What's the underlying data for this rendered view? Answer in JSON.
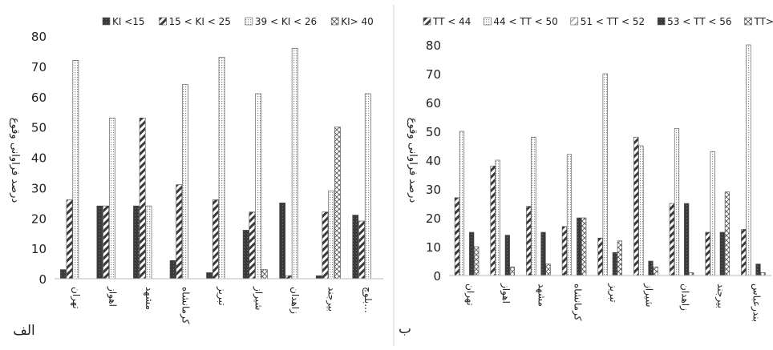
{
  "chart_data": [
    {
      "type": "bar",
      "panel_letter": "الف",
      "ylabel": "درصد فراوانی وقوع",
      "ylim": [
        0,
        80
      ],
      "yticks": [
        0,
        10,
        20,
        30,
        40,
        50,
        60,
        70,
        80
      ],
      "legend_position": "top",
      "categories": [
        "تهران",
        "اهواز",
        "مشهد",
        "کرمانشاه",
        "تبریز",
        "شیراز",
        "زاهدان",
        "بیرجند",
        "بلوچ..."
      ],
      "series": [
        {
          "name": "KI <15",
          "pattern": "solid",
          "values": [
            3,
            24,
            24,
            6,
            2,
            16,
            25,
            1,
            21
          ]
        },
        {
          "name": "15 < KI < 25",
          "pattern": "diag",
          "values": [
            26,
            24,
            53,
            31,
            26,
            22,
            1,
            22,
            19
          ]
        },
        {
          "name": "39 < KI < 26",
          "pattern": "dots",
          "values": [
            72,
            53,
            24,
            64,
            73,
            61,
            76,
            29,
            61
          ]
        },
        {
          "name": "KI> 40",
          "pattern": "cross",
          "values": [
            0,
            0,
            0,
            0,
            0,
            3,
            0,
            50,
            0
          ]
        }
      ]
    },
    {
      "type": "bar",
      "panel_letter": "ب",
      "ylabel": "درصد فراوانی وقوع",
      "ylim": [
        0,
        80
      ],
      "yticks": [
        0,
        10,
        20,
        30,
        40,
        50,
        60,
        70,
        80
      ],
      "legend_position": "top",
      "categories": [
        "تهران",
        "اهواز",
        "مشهد",
        "کرمانشاه",
        "تبریز",
        "شیراز",
        "زاهدان",
        "بیرجند",
        "بندرعباس"
      ],
      "series": [
        {
          "name": "TT < 44",
          "pattern": "diag",
          "values": [
            27,
            38,
            24,
            17,
            13,
            48,
            25,
            15,
            16
          ]
        },
        {
          "name": "44 < TT < 50",
          "pattern": "dots",
          "values": [
            50,
            40,
            48,
            42,
            70,
            45,
            51,
            43,
            80
          ]
        },
        {
          "name": "51 < TT < 52",
          "pattern": "light",
          "values": [
            0,
            0,
            0,
            0,
            0,
            0,
            0,
            0,
            0
          ]
        },
        {
          "name": "53 < TT < 56",
          "pattern": "solid",
          "values": [
            15,
            14,
            15,
            20,
            8,
            5,
            25,
            15,
            4
          ]
        },
        {
          "name": "TT> 56",
          "pattern": "cross",
          "values": [
            10,
            3,
            4,
            20,
            12,
            3,
            1,
            29,
            1
          ]
        }
      ]
    }
  ]
}
